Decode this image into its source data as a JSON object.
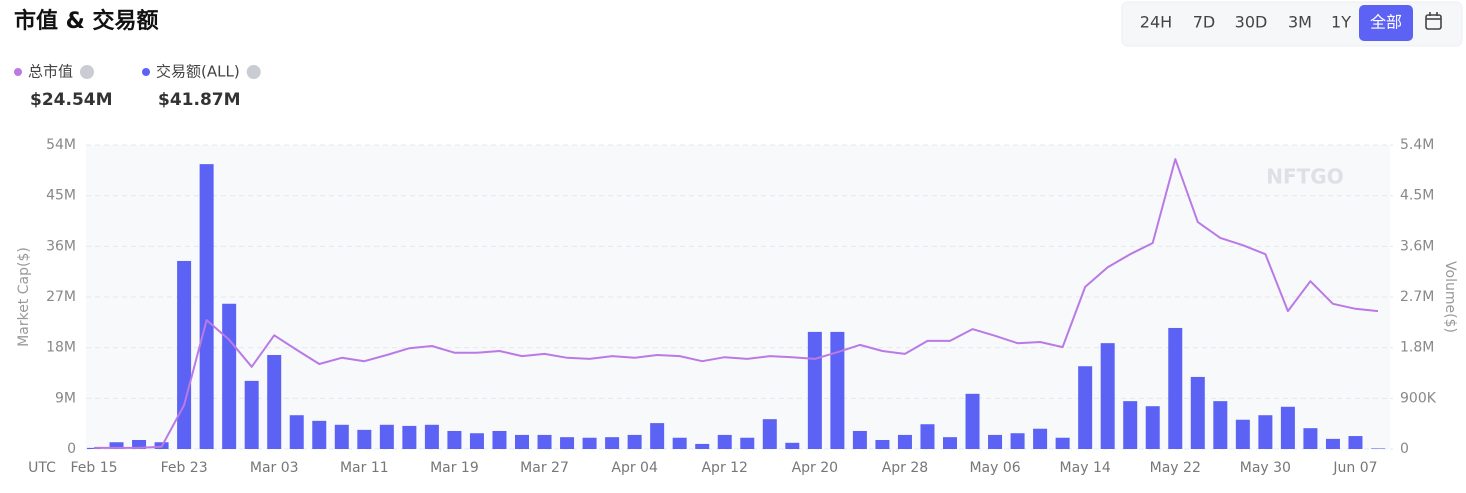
{
  "title": "市值 & 交易额",
  "range_buttons": [
    "24H",
    "7D",
    "30D",
    "3M",
    "1Y",
    "全部"
  ],
  "active_range": 5,
  "chart_data": {
    "type": "combo",
    "watermark": "NFTGO",
    "x_prefix_label": "UTC",
    "ylabel": "Market Cap($)",
    "y2label": "Volume($)",
    "categories": [
      "Feb 15",
      null,
      null,
      null,
      "Feb 23",
      null,
      null,
      null,
      "Mar 03",
      null,
      null,
      null,
      "Mar 11",
      null,
      null,
      null,
      "Mar 19",
      null,
      null,
      null,
      "Mar 27",
      null,
      null,
      null,
      "Apr 04",
      null,
      null,
      null,
      "Apr 12",
      null,
      null,
      null,
      "Apr 20",
      null,
      null,
      null,
      "Apr 28",
      null,
      null,
      null,
      "May 06",
      null,
      null,
      null,
      "May 14",
      null,
      null,
      null,
      "May 22",
      null,
      null,
      null,
      "May 30",
      null,
      null,
      null,
      "Jun 07",
      null
    ],
    "series": [
      {
        "name": "总市值",
        "type": "line",
        "color": "#b97ae6",
        "summary": "$24.54M",
        "values": [
          200000,
          200000,
          200000,
          400000,
          7800000,
          22900000,
          19400000,
          14600000,
          20200000,
          17600000,
          15100000,
          16200000,
          15600000,
          16700000,
          17900000,
          18300000,
          17100000,
          17100000,
          17400000,
          16500000,
          16900000,
          16200000,
          16000000,
          16500000,
          16200000,
          16700000,
          16500000,
          15600000,
          16300000,
          16000000,
          16500000,
          16300000,
          16000000,
          17200000,
          18500000,
          17400000,
          16900000,
          19200000,
          19200000,
          21300000,
          20100000,
          18800000,
          19000000,
          18100000,
          28800000,
          32300000,
          34600000,
          36600000,
          51500000,
          40300000,
          37500000,
          36200000,
          34600000,
          24500000,
          29800000,
          25800000,
          24900000,
          24500000
        ]
      },
      {
        "name": "交易额(ALL)",
        "type": "bar",
        "axis": "y2",
        "color": "#5b62f4",
        "summary": "$41.87M",
        "values": [
          20000,
          120000,
          160000,
          120000,
          3340000,
          5060000,
          2580000,
          1210000,
          1670000,
          600000,
          500000,
          430000,
          340000,
          430000,
          410000,
          430000,
          320000,
          280000,
          320000,
          250000,
          250000,
          210000,
          200000,
          210000,
          250000,
          460000,
          200000,
          90000,
          250000,
          200000,
          530000,
          110000,
          2080000,
          2080000,
          320000,
          160000,
          250000,
          440000,
          210000,
          980000,
          250000,
          280000,
          360000,
          200000,
          1470000,
          1880000,
          850000,
          760000,
          2150000,
          1280000,
          850000,
          520000,
          600000,
          750000,
          370000,
          180000,
          230000,
          10000
        ]
      }
    ],
    "ylim": [
      0,
      54000000
    ],
    "yticks": [
      0,
      {
        "value": 9000000,
        "label": "9M"
      },
      {
        "value": 18000000,
        "label": "18M"
      },
      {
        "value": 27000000,
        "label": "27M"
      },
      {
        "value": 36000000,
        "label": "36M"
      },
      {
        "value": 45000000,
        "label": "45M"
      },
      {
        "value": 54000000,
        "label": "54M"
      }
    ],
    "y2lim": [
      0,
      5400000
    ],
    "y2ticks": [
      0,
      {
        "value": 900000,
        "label": "900K"
      },
      {
        "value": 1800000,
        "label": "1.8M"
      },
      {
        "value": 2700000,
        "label": "2.7M"
      },
      {
        "value": 3600000,
        "label": "3.6M"
      },
      {
        "value": 4500000,
        "label": "4.5M"
      },
      {
        "value": 5400000,
        "label": "5.4M"
      }
    ],
    "grid": true
  }
}
